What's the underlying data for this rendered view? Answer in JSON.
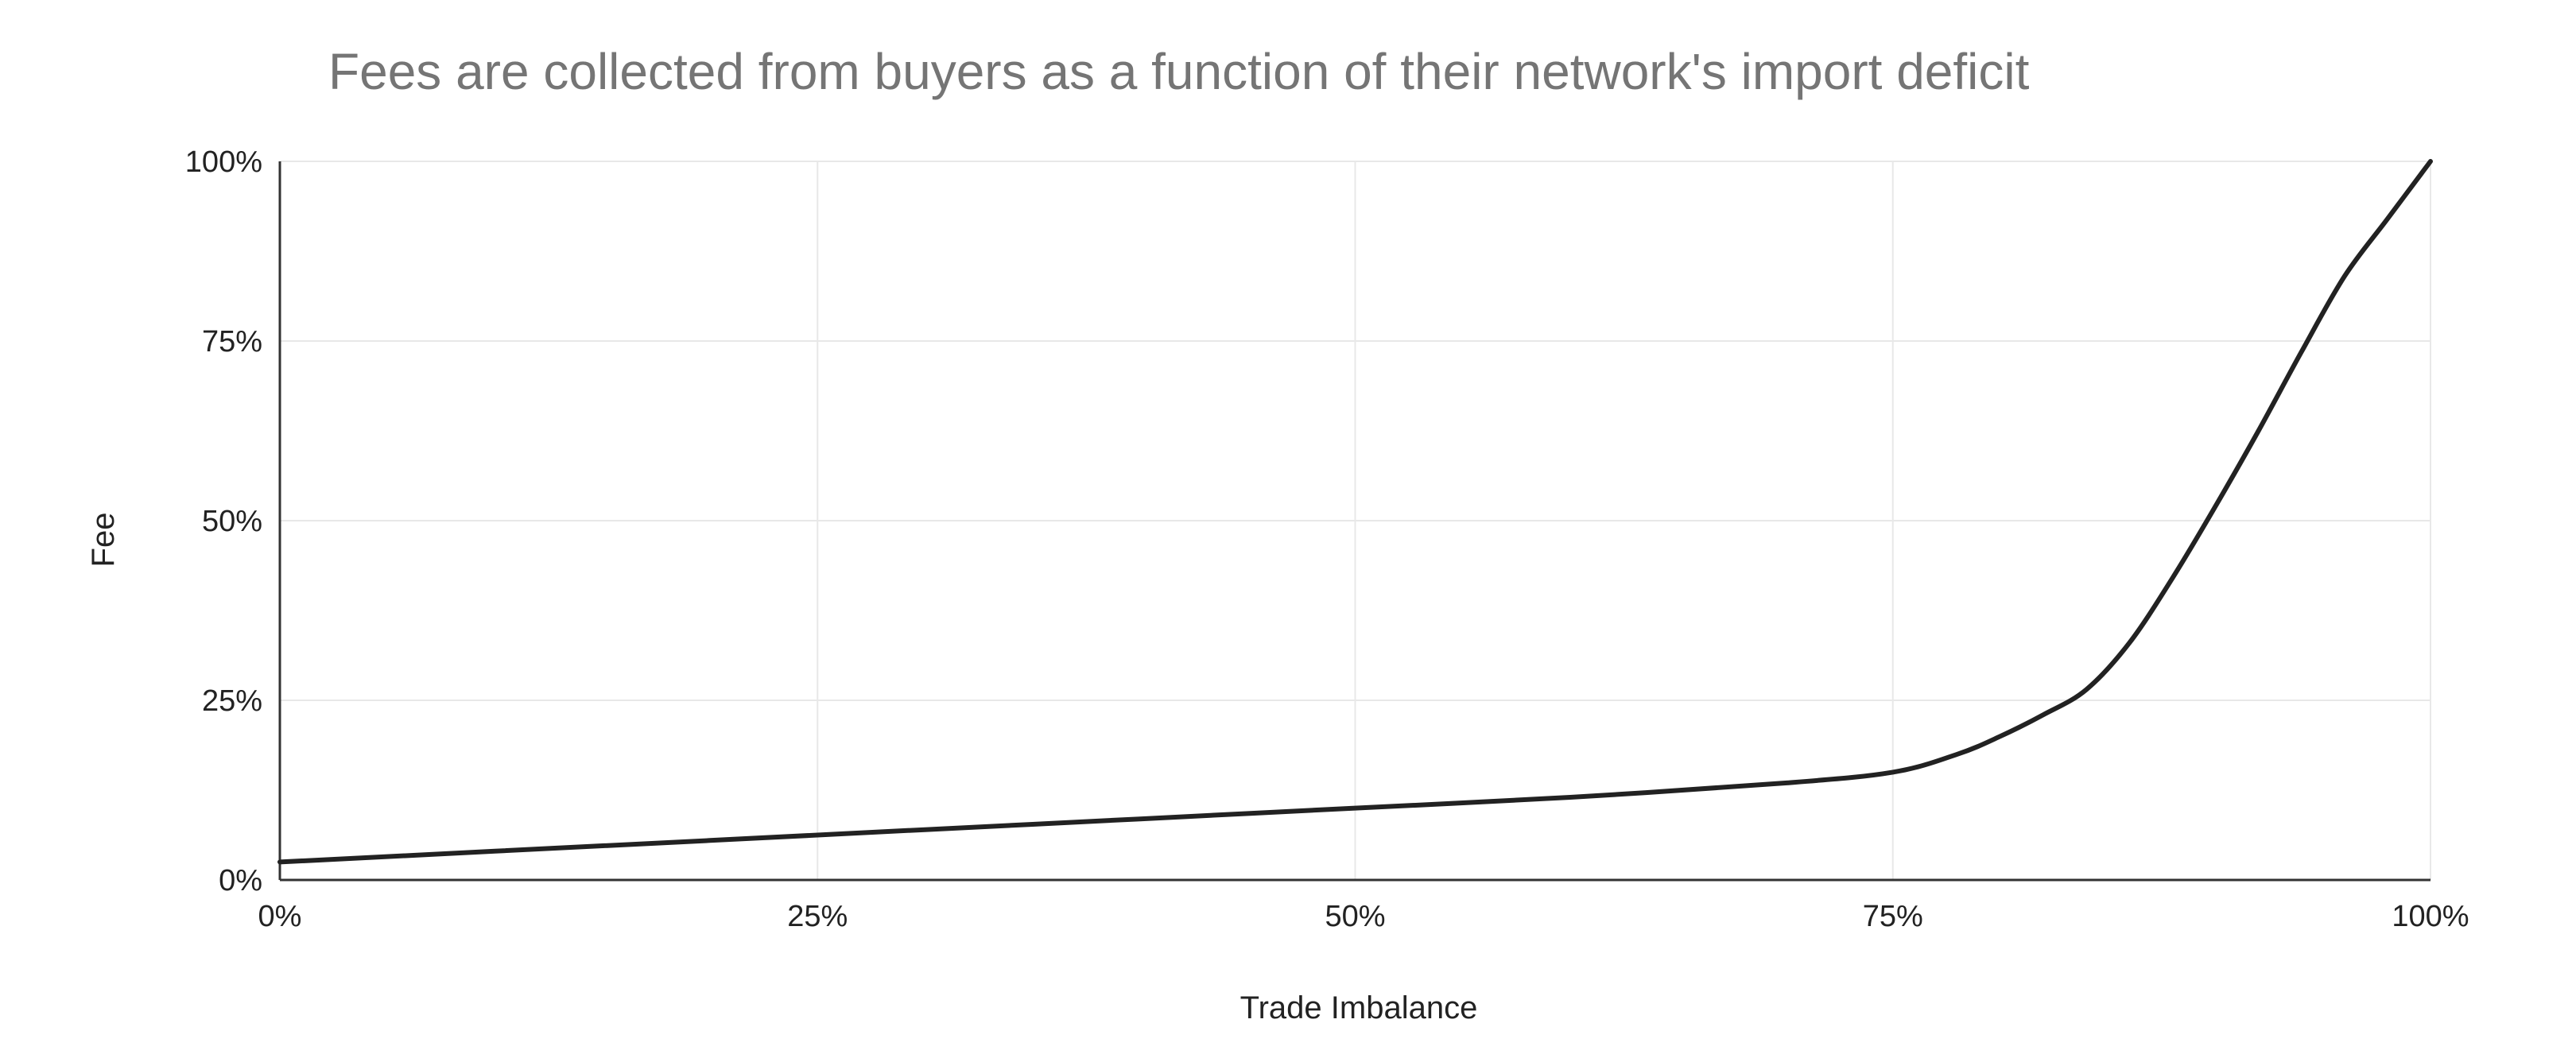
{
  "chart_data": {
    "type": "line",
    "title": "Fees are collected from buyers as a function of their network's import deficit",
    "xlabel": "Trade Imbalance",
    "ylabel": "Fee",
    "xlim": [
      0,
      1
    ],
    "ylim": [
      0,
      1
    ],
    "x_ticks": [
      {
        "value": 0,
        "label": "0%"
      },
      {
        "value": 0.25,
        "label": "25%"
      },
      {
        "value": 0.5,
        "label": "50%"
      },
      {
        "value": 0.75,
        "label": "75%"
      },
      {
        "value": 1,
        "label": "100%"
      }
    ],
    "y_ticks": [
      {
        "value": 0,
        "label": "0%"
      },
      {
        "value": 0.25,
        "label": "25%"
      },
      {
        "value": 0.5,
        "label": "50%"
      },
      {
        "value": 0.75,
        "label": "75%"
      },
      {
        "value": 1,
        "label": "100%"
      }
    ],
    "grid": true,
    "legend": "none",
    "series": [
      {
        "color": "#222222",
        "x": [
          0,
          0.1,
          0.2,
          0.3,
          0.4,
          0.5,
          0.6,
          0.7,
          0.75,
          0.78,
          0.8,
          0.82,
          0.84,
          0.86,
          0.88,
          0.9,
          0.92,
          0.94,
          0.96,
          0.98,
          1.0
        ],
        "y": [
          0.025,
          0.04,
          0.055,
          0.07,
          0.085,
          0.1,
          0.115,
          0.135,
          0.15,
          0.175,
          0.2,
          0.23,
          0.265,
          0.33,
          0.42,
          0.52,
          0.625,
          0.735,
          0.84,
          0.92,
          1.0
        ]
      }
    ]
  }
}
